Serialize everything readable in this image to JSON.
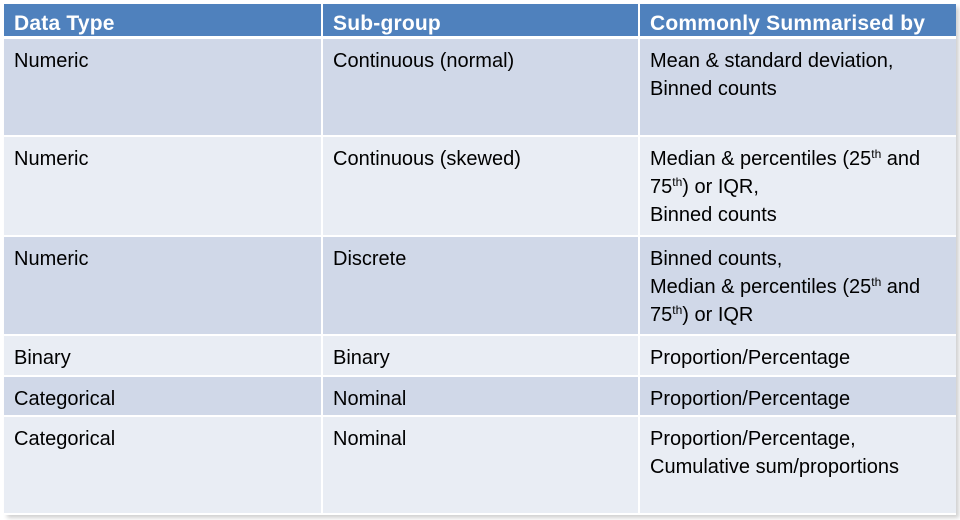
{
  "table": {
    "headers": [
      "Data Type",
      "Sub-group",
      "Commonly Summarised by"
    ],
    "rows": [
      {
        "type": "Numeric",
        "subgroup": "Continuous (normal)",
        "summary": [
          "Mean & standard deviation,",
          "Binned counts"
        ]
      },
      {
        "type": "Numeric",
        "subgroup": "Continuous (skewed)",
        "summary_parts": {
          "a": "Median & percentiles (25",
          "a_sup": "th",
          "a_end": " and",
          "b": "75",
          "b_sup": "th",
          "b_end": ") or IQR,",
          "c": "Binned counts"
        }
      },
      {
        "type": "Numeric",
        "subgroup": "Discrete",
        "summary_parts": {
          "a": "Binned counts,",
          "b": "Median & percentiles (25",
          "b_sup": "th",
          "b_end": " and",
          "c": "75",
          "c_sup": "th",
          "c_end": ") or IQR"
        }
      },
      {
        "type": "Binary",
        "subgroup": "Binary",
        "summary": [
          "Proportion/Percentage"
        ]
      },
      {
        "type": "Categorical",
        "subgroup": "Nominal",
        "summary": [
          "Proportion/Percentage"
        ]
      },
      {
        "type": "Categorical",
        "subgroup": "Nominal",
        "summary": [
          "Proportion/Percentage,",
          "Cumulative sum/proportions"
        ]
      }
    ]
  },
  "colors": {
    "header_bg": "#4f81bd",
    "row_dark": "#d0d8e8",
    "row_light": "#e9edf4"
  }
}
